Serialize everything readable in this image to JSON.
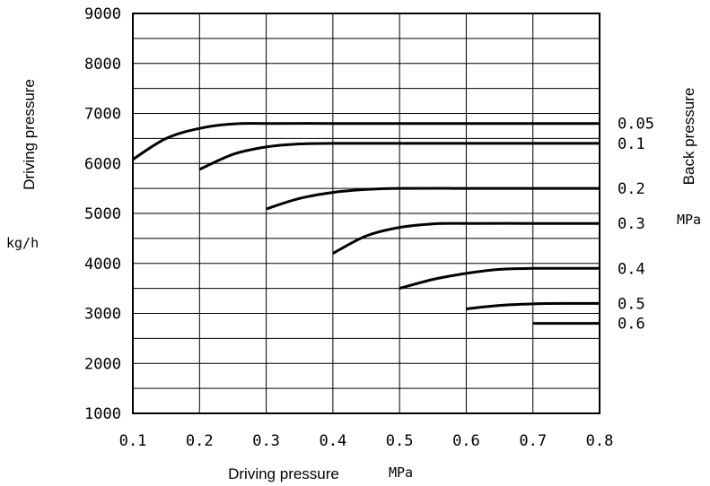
{
  "chart_data": {
    "type": "line",
    "xlabel": "Driving pressure",
    "xunit": "MPa",
    "ylabel": "Driving pressure",
    "yunit": "kg/h",
    "right_label": "Back pressure",
    "right_unit": "MPa",
    "xlim": [
      0.1,
      0.8
    ],
    "ylim": [
      1000,
      9000
    ],
    "x_ticks": [
      "0.1",
      "0.2",
      "0.3",
      "0.4",
      "0.5",
      "0.6",
      "0.7",
      "0.8"
    ],
    "y_ticks": [
      "1000",
      "2000",
      "3000",
      "4000",
      "5000",
      "6000",
      "7000",
      "8000",
      "9000"
    ],
    "grid": true,
    "series": [
      {
        "name": "0.05",
        "x": [
          0.1,
          0.15,
          0.2,
          0.25,
          0.3,
          0.4,
          0.5,
          0.6,
          0.7,
          0.8
        ],
        "y": [
          6080,
          6500,
          6700,
          6790,
          6800,
          6800,
          6800,
          6800,
          6800,
          6800
        ]
      },
      {
        "name": "0.1",
        "x": [
          0.2,
          0.25,
          0.3,
          0.35,
          0.4,
          0.5,
          0.6,
          0.7,
          0.8
        ],
        "y": [
          5880,
          6180,
          6330,
          6390,
          6400,
          6400,
          6400,
          6400,
          6400
        ]
      },
      {
        "name": "0.2",
        "x": [
          0.3,
          0.35,
          0.4,
          0.45,
          0.5,
          0.6,
          0.7,
          0.8
        ],
        "y": [
          5090,
          5300,
          5420,
          5480,
          5500,
          5500,
          5500,
          5500
        ]
      },
      {
        "name": "0.3",
        "x": [
          0.4,
          0.45,
          0.5,
          0.55,
          0.6,
          0.7,
          0.8
        ],
        "y": [
          4200,
          4550,
          4720,
          4790,
          4800,
          4800,
          4800
        ]
      },
      {
        "name": "0.4",
        "x": [
          0.5,
          0.55,
          0.6,
          0.65,
          0.7,
          0.8
        ],
        "y": [
          3500,
          3680,
          3800,
          3880,
          3900,
          3900
        ]
      },
      {
        "name": "0.5",
        "x": [
          0.6,
          0.65,
          0.7,
          0.75,
          0.8
        ],
        "y": [
          3090,
          3160,
          3190,
          3200,
          3200
        ]
      },
      {
        "name": "0.6",
        "x": [
          0.7,
          0.8
        ],
        "y": [
          2800,
          2800
        ]
      }
    ]
  }
}
